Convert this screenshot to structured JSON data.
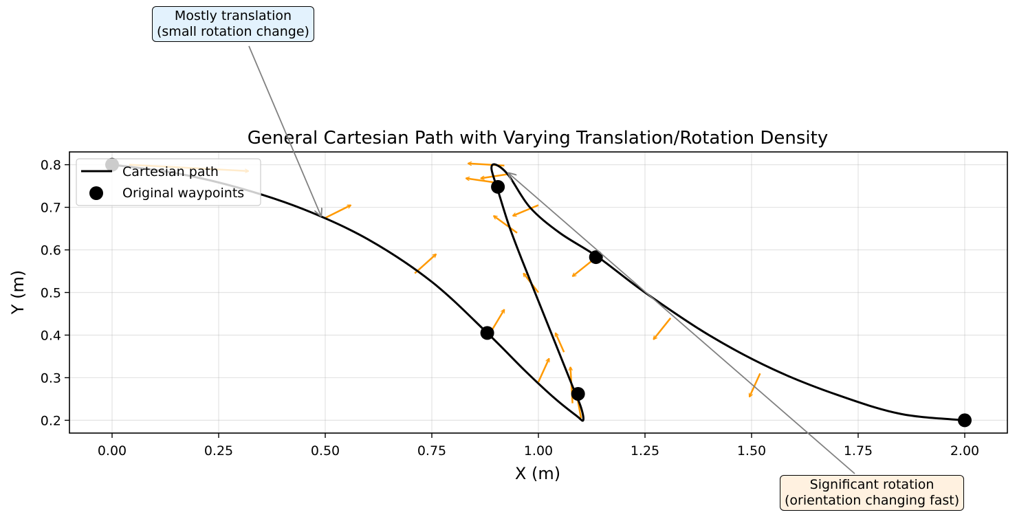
{
  "chart_data": {
    "type": "line",
    "title": "General Cartesian Path with Varying Translation/Rotation Density",
    "xlabel": "X (m)",
    "ylabel": "Y (m)",
    "xlim": [
      -0.1,
      2.1
    ],
    "ylim": [
      0.17,
      0.83
    ],
    "xticks": [
      "0.00",
      "0.25",
      "0.50",
      "0.75",
      "1.00",
      "1.25",
      "1.50",
      "1.75",
      "2.00"
    ],
    "yticks": [
      "0.2",
      "0.3",
      "0.4",
      "0.5",
      "0.6",
      "0.7",
      "0.8"
    ],
    "grid": true,
    "legend_position": "upper-left",
    "legend": [
      {
        "label": "Cartesian path",
        "kind": "line"
      },
      {
        "label": "Original waypoints",
        "kind": "marker"
      }
    ],
    "colors": {
      "path": "#000000",
      "waypoints": "#000000",
      "arrows": "#ff9900",
      "annotation_line": "#808080",
      "ann_translation_bg": "#e3f2fd",
      "ann_rotation_bg": "#fff1e0"
    },
    "series": [
      {
        "name": "Cartesian path",
        "x": [
          0.0,
          0.15,
          0.3,
          0.45,
          0.6,
          0.75,
          0.88,
          0.97,
          1.04,
          1.09,
          1.105,
          1.1,
          1.08,
          1.04,
          1.0,
          0.96,
          0.93,
          0.905,
          0.89,
          0.9,
          0.93,
          0.98,
          1.05,
          1.14,
          1.25,
          1.4,
          1.55,
          1.7,
          1.85,
          2.0
        ],
        "y": [
          0.8,
          0.78,
          0.745,
          0.695,
          0.625,
          0.525,
          0.405,
          0.315,
          0.25,
          0.21,
          0.2,
          0.23,
          0.28,
          0.38,
          0.48,
          0.58,
          0.66,
          0.74,
          0.79,
          0.8,
          0.775,
          0.7,
          0.64,
          0.583,
          0.5,
          0.4,
          0.32,
          0.26,
          0.215,
          0.2
        ]
      },
      {
        "name": "Original waypoints",
        "x": [
          0.0,
          0.88,
          1.093,
          0.905,
          1.135,
          2.0
        ],
        "y": [
          0.8,
          0.405,
          0.262,
          0.748,
          0.583,
          0.2
        ]
      },
      {
        "name": "orientation arrows",
        "arrows": [
          {
            "x": 0.04,
            "y": 0.8,
            "dx": 0.28,
            "dy": -0.015
          },
          {
            "x": 0.5,
            "y": 0.675,
            "dx": 0.06,
            "dy": 0.03
          },
          {
            "x": 0.71,
            "y": 0.545,
            "dx": 0.05,
            "dy": 0.045
          },
          {
            "x": 0.89,
            "y": 0.41,
            "dx": 0.03,
            "dy": 0.05
          },
          {
            "x": 1.0,
            "y": 0.29,
            "dx": 0.025,
            "dy": 0.055
          },
          {
            "x": 1.08,
            "y": 0.24,
            "dx": -0.005,
            "dy": 0.085
          },
          {
            "x": 1.1,
            "y": 0.205,
            "dx": -0.01,
            "dy": 0.055
          },
          {
            "x": 1.06,
            "y": 0.36,
            "dx": -0.02,
            "dy": 0.045
          },
          {
            "x": 1.0,
            "y": 0.5,
            "dx": -0.035,
            "dy": 0.045
          },
          {
            "x": 0.95,
            "y": 0.64,
            "dx": -0.055,
            "dy": 0.04
          },
          {
            "x": 1.0,
            "y": 0.705,
            "dx": -0.06,
            "dy": -0.025
          },
          {
            "x": 0.9,
            "y": 0.758,
            "dx": -0.07,
            "dy": 0.01
          },
          {
            "x": 0.93,
            "y": 0.778,
            "dx": -0.065,
            "dy": -0.01
          },
          {
            "x": 0.92,
            "y": 0.798,
            "dx": -0.085,
            "dy": 0.005
          },
          {
            "x": 1.13,
            "y": 0.578,
            "dx": -0.05,
            "dy": -0.04
          },
          {
            "x": 1.31,
            "y": 0.44,
            "dx": -0.04,
            "dy": -0.05
          },
          {
            "x": 1.52,
            "y": 0.31,
            "dx": -0.025,
            "dy": -0.055
          }
        ]
      }
    ],
    "annotations": [
      {
        "text": "Mostly translation\n(small rotation change)",
        "x": 0.49,
        "y": 0.68
      },
      {
        "text": "Significant rotation\n(orientation changing fast)",
        "x": 0.93,
        "y": 0.78
      }
    ]
  }
}
